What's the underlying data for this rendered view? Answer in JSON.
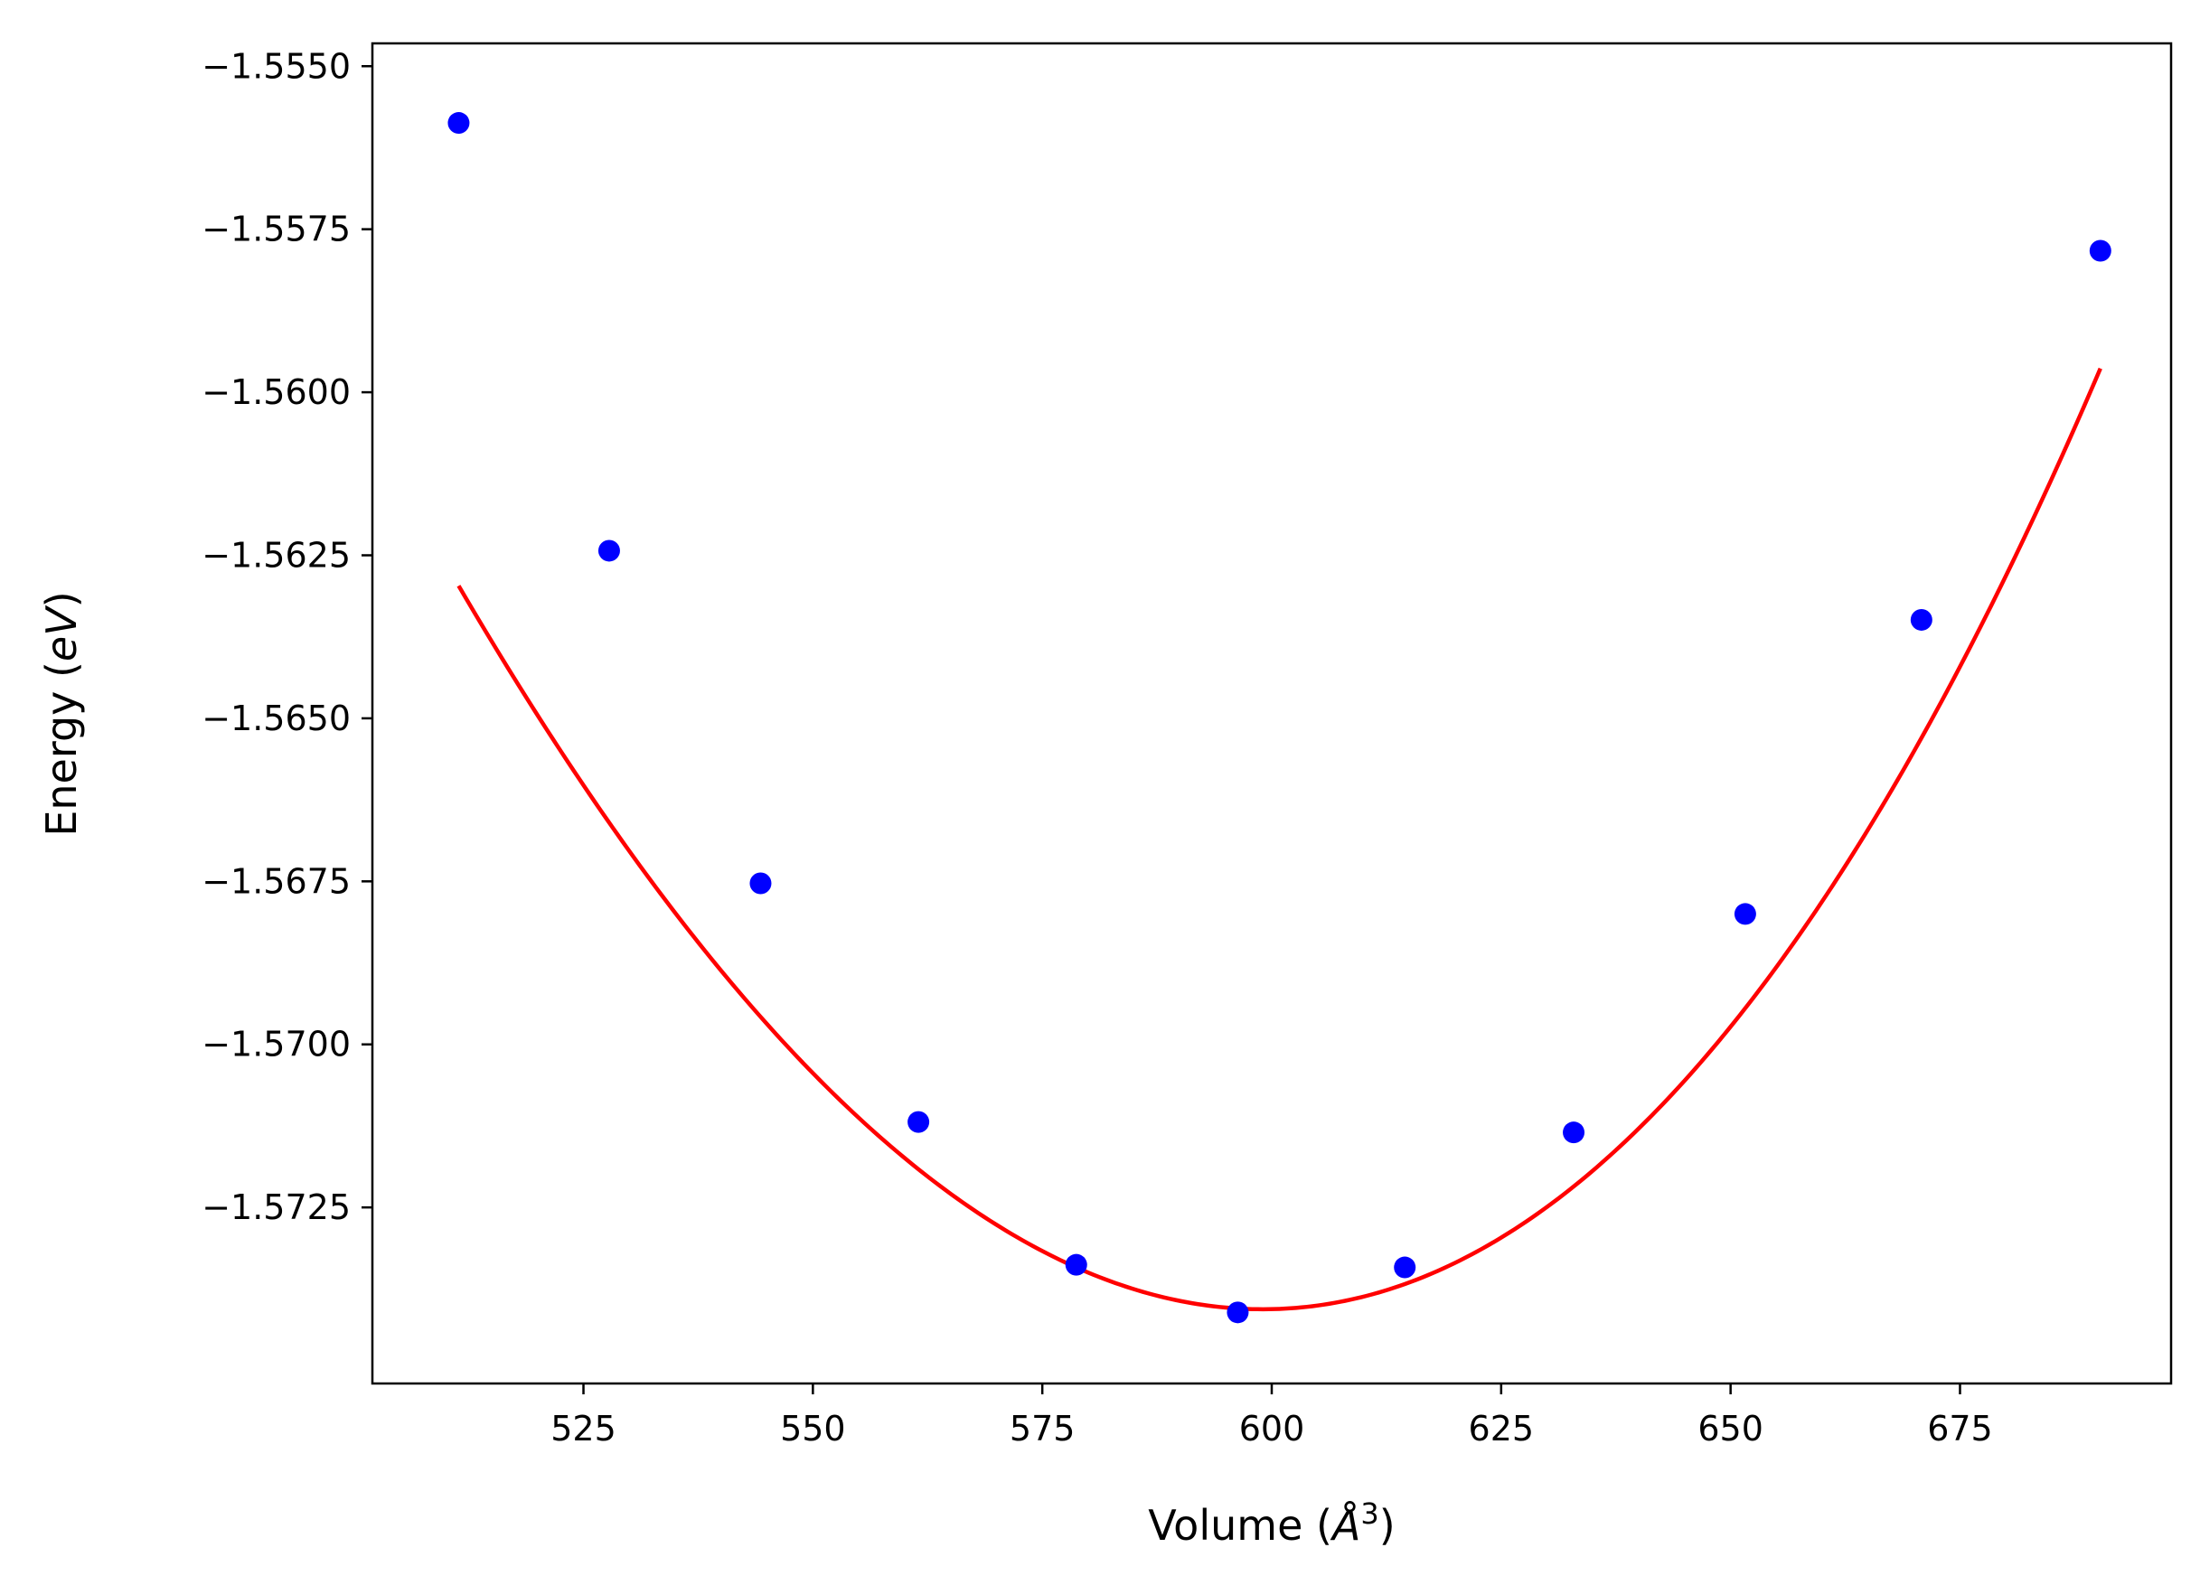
{
  "chart_data": {
    "type": "scatter",
    "xlabel": "Volume (Å³)",
    "ylabel": "Energy (eV)",
    "xlabel_parts": {
      "prefix": "Volume (",
      "italic": "Å",
      "sup": "3",
      "suffix": ")"
    },
    "ylabel_parts": {
      "prefix": "Energy (",
      "italic": "eV",
      "suffix": ")"
    },
    "xlim": [
      502,
      698
    ],
    "ylim": [
      -1.5752,
      -1.55465
    ],
    "xticks": [
      525,
      550,
      575,
      600,
      625,
      650,
      675
    ],
    "xtick_labels": [
      "525",
      "550",
      "575",
      "600",
      "625",
      "650",
      "675"
    ],
    "yticks": [
      -1.555,
      -1.5575,
      -1.56,
      -1.5625,
      -1.565,
      -1.5675,
      -1.57,
      -1.5725
    ],
    "ytick_labels": [
      "−1.5550",
      "−1.5575",
      "−1.5600",
      "−1.5625",
      "−1.5650",
      "−1.5675",
      "−1.5700",
      "−1.5725"
    ],
    "grid": false,
    "series": [
      {
        "style": "markers",
        "color": "#0000ff",
        "x": [
          511.4,
          527.8,
          544.3,
          561.5,
          578.7,
          596.3,
          614.5,
          632.9,
          651.6,
          670.8,
          690.3
        ],
        "y": [
          -1.55587,
          -1.56243,
          -1.56753,
          -1.57119,
          -1.57338,
          -1.57411,
          -1.57342,
          -1.57135,
          -1.568,
          -1.56349,
          -1.55783
        ]
      },
      {
        "style": "line",
        "color": "#ff0000",
        "fit": {
          "model": "cubic",
          "x0": 600,
          "coefficients": [
            -1.57406,
            3.12e-06,
            1.59e-06,
            1.6e-09
          ],
          "x_range": [
            511.4,
            690.3
          ]
        }
      }
    ]
  }
}
